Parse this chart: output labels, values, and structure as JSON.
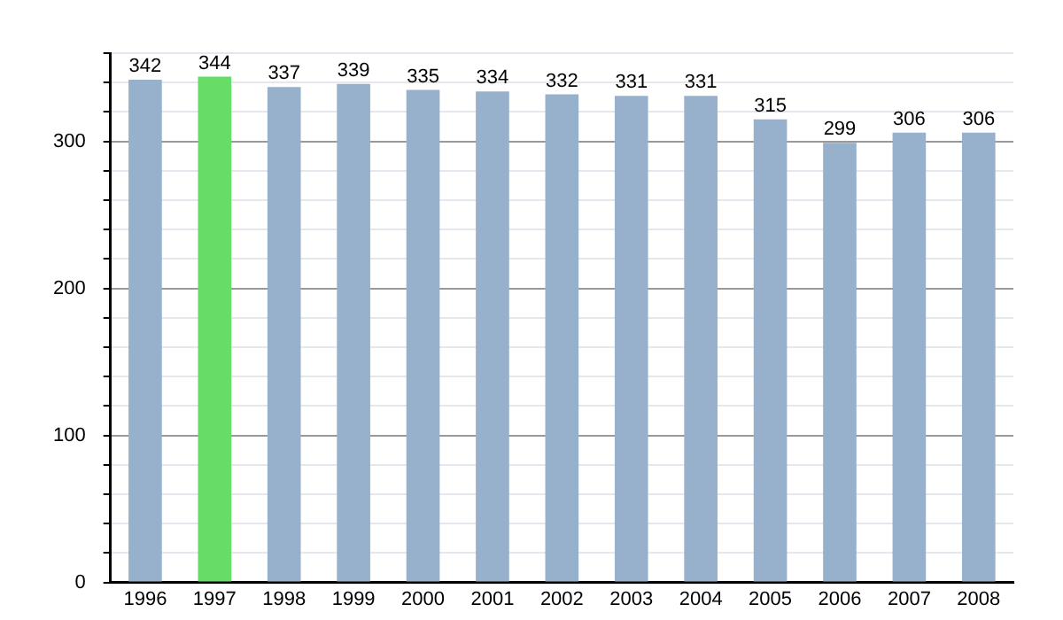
{
  "chart_data": {
    "type": "bar",
    "categories": [
      "1996",
      "1997",
      "1998",
      "1999",
      "2000",
      "2001",
      "2002",
      "2003",
      "2004",
      "2005",
      "2006",
      "2007",
      "2008"
    ],
    "values": [
      342,
      344,
      337,
      339,
      335,
      334,
      332,
      331,
      331,
      315,
      299,
      306,
      306
    ],
    "colors": [
      "#97b0cb",
      "#66dd66",
      "#97b0cb",
      "#97b0cb",
      "#97b0cb",
      "#97b0cb",
      "#97b0cb",
      "#97b0cb",
      "#97b0cb",
      "#97b0cb",
      "#97b0cb",
      "#97b0cb",
      "#97b0cb"
    ],
    "ylim": [
      0,
      360
    ],
    "yticks": [
      0,
      {
        "value": 20,
        "label": null
      },
      {
        "value": 40,
        "label": null
      },
      {
        "value": 60,
        "label": null
      },
      {
        "value": 80,
        "label": null
      },
      100,
      {
        "value": 120,
        "label": null
      },
      {
        "value": 140,
        "label": null
      },
      {
        "value": 160,
        "label": null
      },
      {
        "value": 180,
        "label": null
      },
      200,
      {
        "value": 220,
        "label": null
      },
      {
        "value": 240,
        "label": null
      },
      {
        "value": 260,
        "label": null
      },
      {
        "value": 280,
        "label": null
      },
      300,
      {
        "value": 320,
        "label": null
      },
      {
        "value": 340,
        "label": null
      },
      {
        "value": 360,
        "label": null
      }
    ],
    "grid": true,
    "legend": false,
    "data_labels": true
  }
}
